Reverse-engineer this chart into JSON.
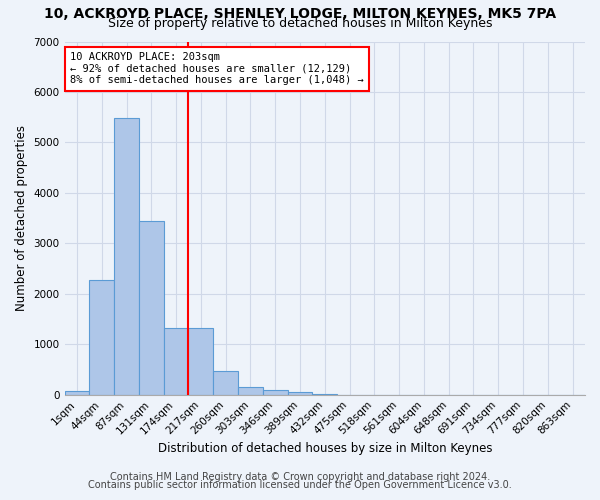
{
  "title": "10, ACKROYD PLACE, SHENLEY LODGE, MILTON KEYNES, MK5 7PA",
  "subtitle": "Size of property relative to detached houses in Milton Keynes",
  "xlabel": "Distribution of detached houses by size in Milton Keynes",
  "ylabel": "Number of detached properties",
  "footnote1": "Contains HM Land Registry data © Crown copyright and database right 2024.",
  "footnote2": "Contains public sector information licensed under the Open Government Licence v3.0.",
  "bar_values": [
    75,
    2280,
    5480,
    3440,
    1320,
    1320,
    470,
    150,
    90,
    55,
    20,
    0,
    0,
    0,
    0,
    0,
    0,
    0,
    0,
    0,
    0
  ],
  "bar_labels": [
    "1sqm",
    "44sqm",
    "87sqm",
    "131sqm",
    "174sqm",
    "217sqm",
    "260sqm",
    "303sqm",
    "346sqm",
    "389sqm",
    "432sqm",
    "475sqm",
    "518sqm",
    "561sqm",
    "604sqm",
    "648sqm",
    "691sqm",
    "734sqm",
    "777sqm",
    "820sqm",
    "863sqm"
  ],
  "bar_color": "#aec6e8",
  "bar_edgecolor": "#5b9bd5",
  "bar_linewidth": 0.8,
  "vline_color": "red",
  "annotation_line1": "10 ACKROYD PLACE: 203sqm",
  "annotation_line2": "← 92% of detached houses are smaller (12,129)",
  "annotation_line3": "8% of semi-detached houses are larger (1,048) →",
  "annotation_box_color": "red",
  "annotation_text_color": "black",
  "annotation_bg_color": "white",
  "ylim": [
    0,
    7000
  ],
  "yticks": [
    0,
    1000,
    2000,
    3000,
    4000,
    5000,
    6000,
    7000
  ],
  "bg_color": "#eef3fa",
  "plot_bg_color": "#eef3fa",
  "grid_color": "#d0d8e8",
  "title_fontsize": 10,
  "subtitle_fontsize": 9,
  "axis_label_fontsize": 8.5,
  "tick_fontsize": 7.5,
  "footnote_fontsize": 7
}
